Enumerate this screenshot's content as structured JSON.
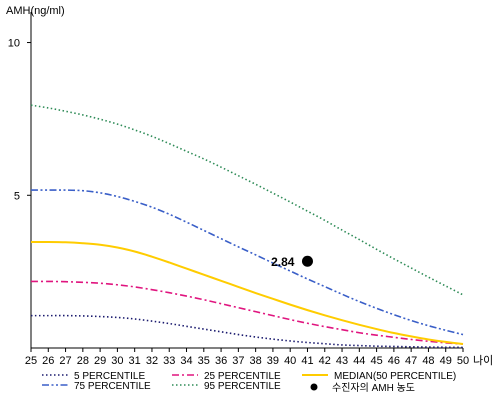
{
  "chart_data": {
    "type": "line",
    "ylabel": "AMH(ng/ml)",
    "xlabel": "나이",
    "x": [
      25,
      26,
      27,
      28,
      29,
      30,
      31,
      32,
      33,
      34,
      35,
      36,
      37,
      38,
      39,
      40,
      41,
      42,
      43,
      44,
      45,
      46,
      47,
      48,
      49,
      50
    ],
    "x_tick_labels": [
      "25",
      "26",
      "27",
      "28",
      "29",
      "30",
      "31",
      "32",
      "33",
      "34",
      "35",
      "36",
      "37",
      "38",
      "39",
      "40",
      "41",
      "42",
      "43",
      "44",
      "45",
      "46",
      "47",
      "48",
      "49",
      "50"
    ],
    "y_ticks": [
      5,
      10
    ],
    "y_tick_labels": [
      "5",
      "10"
    ],
    "ylim": [
      0,
      11
    ],
    "xlim": [
      25,
      50
    ],
    "grid": false,
    "legend_position": "bottom",
    "series": [
      {
        "name": "5 PERCENTILE",
        "color": "#1a1a6e",
        "dash": "dot",
        "values": [
          1.06,
          1.06,
          1.06,
          1.05,
          1.03,
          1.0,
          0.95,
          0.88,
          0.8,
          0.71,
          0.62,
          0.53,
          0.44,
          0.36,
          0.29,
          0.23,
          0.18,
          0.14,
          0.1,
          0.08,
          0.06,
          0.05,
          0.04,
          0.03,
          0.025,
          0.02
        ]
      },
      {
        "name": "25 PERCENTILE",
        "color": "#e0157f",
        "dash": "dashdot",
        "values": [
          2.18,
          2.18,
          2.17,
          2.15,
          2.12,
          2.07,
          2.0,
          1.91,
          1.81,
          1.7,
          1.58,
          1.45,
          1.32,
          1.19,
          1.06,
          0.93,
          0.81,
          0.7,
          0.6,
          0.5,
          0.42,
          0.35,
          0.28,
          0.22,
          0.17,
          0.13
        ]
      },
      {
        "name": "MEDIAN(50 PERCENTILE)",
        "color": "#ffcc00",
        "dash": "solid",
        "values": [
          3.47,
          3.47,
          3.46,
          3.43,
          3.38,
          3.29,
          3.16,
          2.99,
          2.8,
          2.6,
          2.4,
          2.2,
          2.0,
          1.8,
          1.61,
          1.42,
          1.24,
          1.07,
          0.91,
          0.76,
          0.62,
          0.49,
          0.38,
          0.28,
          0.2,
          0.13
        ]
      },
      {
        "name": "75 PERCENTILE",
        "color": "#3a5fc8",
        "dash": "dashdotdot",
        "values": [
          5.17,
          5.17,
          5.17,
          5.15,
          5.08,
          4.96,
          4.8,
          4.61,
          4.38,
          4.12,
          3.85,
          3.58,
          3.31,
          3.05,
          2.78,
          2.52,
          2.26,
          2.01,
          1.76,
          1.52,
          1.3,
          1.09,
          0.9,
          0.73,
          0.58,
          0.44
        ]
      },
      {
        "name": "95 PERCENTILE",
        "color": "#2e8b57",
        "dash": "dot",
        "values": [
          7.95,
          7.86,
          7.75,
          7.63,
          7.49,
          7.33,
          7.14,
          6.93,
          6.69,
          6.44,
          6.19,
          5.92,
          5.64,
          5.36,
          5.07,
          4.78,
          4.48,
          4.18,
          3.86,
          3.55,
          3.23,
          2.92,
          2.62,
          2.32,
          2.03,
          1.74
        ]
      }
    ],
    "marker": {
      "label": "수진자의 AMH 농도",
      "x": 41,
      "y": 2.84,
      "value_label": "2.84",
      "color": "#000000"
    }
  }
}
